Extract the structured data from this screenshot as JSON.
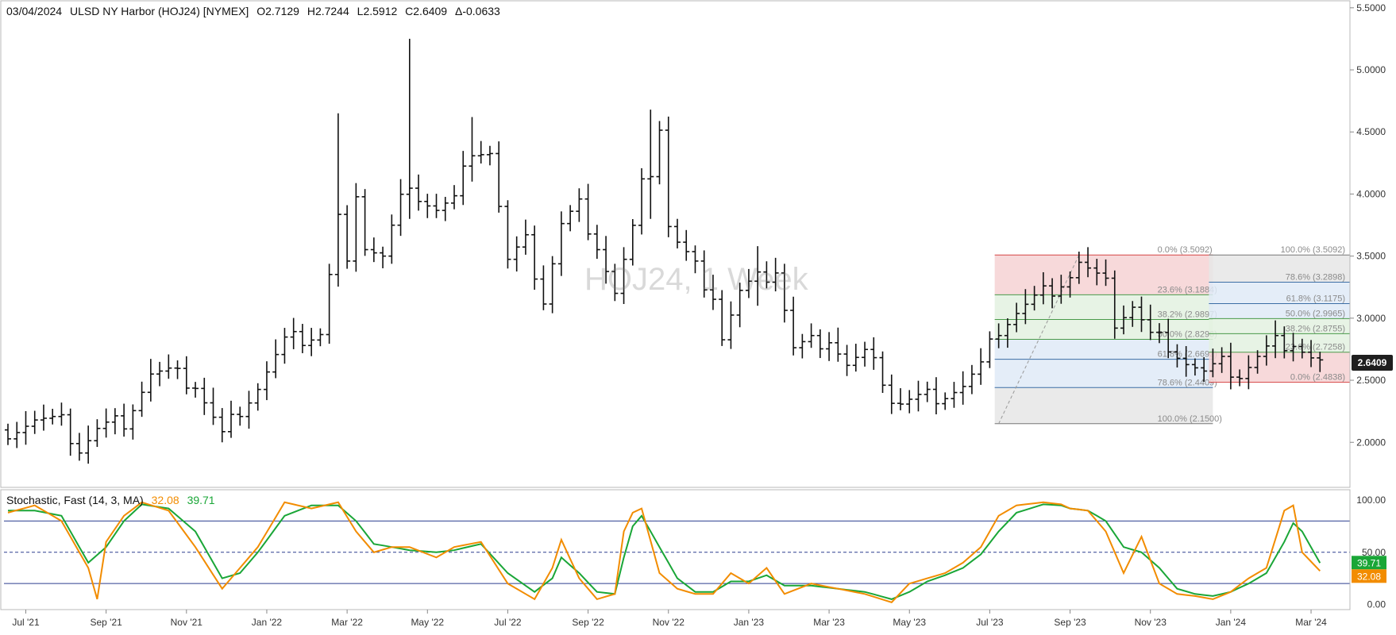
{
  "header": {
    "date": "03/04/2024",
    "symbol_desc": "ULSD NY Harbor (HOJ24) [NYMEX]",
    "open": "O2.7129",
    "high": "H2.7244",
    "low": "L2.5912",
    "close": "C2.6409",
    "change": "Δ-0.0633"
  },
  "watermark": "HOJ24, 1 Week",
  "last_price_label": "2.6409",
  "stochastic": {
    "title": "Stochastic, Fast  (14, 3, MA)",
    "k_value": "32.08",
    "d_value": "39.71",
    "k_label": "32.08",
    "d_label": "39.71"
  },
  "colors": {
    "bar": "#111111",
    "k_line": "#f28c00",
    "d_line": "#1aa637",
    "last_price_bg": "#1f1f1f",
    "fib_red": "#f6d2d4",
    "fib_green": "#e3f1e1",
    "fib_blue": "#dfeaf7",
    "fib_gray": "#e6e6e6",
    "guide_blue": "#2c3e8f"
  },
  "chart_data": {
    "type": "ohlc",
    "price_axis": {
      "ticks": [
        "5.5000",
        "5.0000",
        "4.5000",
        "4.0000",
        "3.5000",
        "3.0000",
        "2.5000",
        "2.0000"
      ],
      "range": [
        1.65,
        5.55
      ]
    },
    "stoch_axis": {
      "ticks": [
        "100.00",
        "50.00",
        "0.00"
      ],
      "range": [
        -5,
        110
      ],
      "lines": [
        80,
        50,
        20
      ]
    },
    "x_axis": {
      "labels": [
        "Jul '21",
        "Sep '21",
        "Nov '21",
        "Jan '22",
        "Mar '22",
        "May '22",
        "Jul '22",
        "Sep '22",
        "Nov '22",
        "Jan '23",
        "Mar '23",
        "May '23",
        "Jul '23",
        "Sep '23",
        "Nov '23",
        "Jan '24",
        "Mar '24"
      ],
      "label_weeks": [
        2,
        11,
        20,
        29,
        38,
        47,
        56,
        65,
        74,
        83,
        92,
        101,
        110,
        119,
        128,
        137,
        146
      ]
    },
    "weeks": 148,
    "keypoints": [
      [
        0,
        2.1
      ],
      [
        3,
        2.18
      ],
      [
        6,
        2.15
      ],
      [
        8,
        1.95
      ],
      [
        10,
        2.1
      ],
      [
        13,
        2.18
      ],
      [
        16,
        2.55
      ],
      [
        18,
        2.55
      ],
      [
        21,
        2.47
      ],
      [
        24,
        2.05
      ],
      [
        26,
        2.28
      ],
      [
        28,
        2.45
      ],
      [
        31,
        2.8
      ],
      [
        35,
        2.88
      ],
      [
        37,
        3.8
      ],
      [
        38,
        3.4
      ],
      [
        39,
        4.05
      ],
      [
        40,
        3.6
      ],
      [
        42,
        3.5
      ],
      [
        44,
        3.95
      ],
      [
        46,
        4.0
      ],
      [
        48,
        3.88
      ],
      [
        50,
        3.95
      ],
      [
        52,
        4.38
      ],
      [
        54,
        4.35
      ],
      [
        56,
        3.45
      ],
      [
        58,
        3.6
      ],
      [
        60,
        3.15
      ],
      [
        62,
        3.75
      ],
      [
        64,
        3.9
      ],
      [
        66,
        3.6
      ],
      [
        67,
        3.4
      ],
      [
        68,
        3.2
      ],
      [
        70,
        3.7
      ],
      [
        71,
        4.05
      ],
      [
        72,
        4.2
      ],
      [
        73,
        4.55
      ],
      [
        74,
        3.75
      ],
      [
        75,
        3.6
      ],
      [
        77,
        3.4
      ],
      [
        79,
        3.2
      ],
      [
        80,
        2.85
      ],
      [
        82,
        3.2
      ],
      [
        84,
        3.3
      ],
      [
        86,
        3.4
      ],
      [
        88,
        2.75
      ],
      [
        90,
        2.8
      ],
      [
        92,
        2.85
      ],
      [
        94,
        2.62
      ],
      [
        96,
        2.7
      ],
      [
        98,
        2.52
      ],
      [
        99,
        2.35
      ],
      [
        100,
        2.32
      ],
      [
        102,
        2.35
      ],
      [
        105,
        2.4
      ],
      [
        107,
        2.45
      ],
      [
        109,
        2.6
      ],
      [
        111,
        2.92
      ],
      [
        113,
        3.05
      ],
      [
        115,
        3.15
      ],
      [
        117,
        3.25
      ],
      [
        119,
        3.35
      ],
      [
        120,
        3.45
      ],
      [
        121,
        3.38
      ],
      [
        123,
        3.25
      ],
      [
        124,
        2.98
      ],
      [
        126,
        3.1
      ],
      [
        128,
        2.85
      ],
      [
        130,
        2.8
      ],
      [
        132,
        2.65
      ],
      [
        134,
        2.55
      ],
      [
        136,
        2.62
      ],
      [
        138,
        2.55
      ],
      [
        140,
        2.68
      ],
      [
        142,
        2.8
      ],
      [
        144,
        2.82
      ],
      [
        146,
        2.68
      ],
      [
        147,
        2.64
      ]
    ],
    "spikes": {
      "37": [
        3.4,
        4.65
      ],
      "45": [
        3.8,
        5.25
      ],
      "52": [
        4.1,
        4.62
      ],
      "72": [
        3.8,
        4.68
      ],
      "84": [
        3.1,
        3.58
      ]
    },
    "stochastic_k_keypoints": [
      [
        0,
        88
      ],
      [
        3,
        95
      ],
      [
        6,
        80
      ],
      [
        9,
        35
      ],
      [
        10,
        5
      ],
      [
        11,
        60
      ],
      [
        13,
        85
      ],
      [
        15,
        98
      ],
      [
        18,
        90
      ],
      [
        21,
        55
      ],
      [
        24,
        15
      ],
      [
        26,
        35
      ],
      [
        28,
        55
      ],
      [
        31,
        98
      ],
      [
        34,
        92
      ],
      [
        37,
        98
      ],
      [
        39,
        70
      ],
      [
        41,
        50
      ],
      [
        43,
        55
      ],
      [
        45,
        55
      ],
      [
        48,
        45
      ],
      [
        50,
        55
      ],
      [
        53,
        60
      ],
      [
        56,
        20
      ],
      [
        59,
        5
      ],
      [
        61,
        35
      ],
      [
        62,
        62
      ],
      [
        64,
        25
      ],
      [
        66,
        5
      ],
      [
        68,
        10
      ],
      [
        69,
        70
      ],
      [
        70,
        88
      ],
      [
        71,
        92
      ],
      [
        73,
        30
      ],
      [
        75,
        15
      ],
      [
        77,
        10
      ],
      [
        79,
        10
      ],
      [
        81,
        30
      ],
      [
        83,
        20
      ],
      [
        85,
        35
      ],
      [
        87,
        10
      ],
      [
        90,
        20
      ],
      [
        93,
        15
      ],
      [
        96,
        10
      ],
      [
        99,
        2
      ],
      [
        101,
        20
      ],
      [
        103,
        25
      ],
      [
        105,
        30
      ],
      [
        107,
        40
      ],
      [
        109,
        55
      ],
      [
        111,
        85
      ],
      [
        113,
        95
      ],
      [
        116,
        98
      ],
      [
        118,
        96
      ],
      [
        119,
        92
      ],
      [
        121,
        90
      ],
      [
        123,
        70
      ],
      [
        125,
        30
      ],
      [
        127,
        65
      ],
      [
        129,
        20
      ],
      [
        131,
        10
      ],
      [
        133,
        8
      ],
      [
        135,
        5
      ],
      [
        137,
        12
      ],
      [
        139,
        25
      ],
      [
        141,
        35
      ],
      [
        143,
        90
      ],
      [
        144,
        95
      ],
      [
        145,
        50
      ],
      [
        147,
        32.08
      ]
    ],
    "stochastic_d_keypoints": [
      [
        0,
        90
      ],
      [
        3,
        90
      ],
      [
        6,
        85
      ],
      [
        9,
        40
      ],
      [
        11,
        55
      ],
      [
        13,
        80
      ],
      [
        15,
        96
      ],
      [
        18,
        92
      ],
      [
        21,
        70
      ],
      [
        24,
        25
      ],
      [
        26,
        30
      ],
      [
        28,
        50
      ],
      [
        31,
        85
      ],
      [
        34,
        95
      ],
      [
        37,
        95
      ],
      [
        39,
        80
      ],
      [
        41,
        58
      ],
      [
        43,
        55
      ],
      [
        45,
        52
      ],
      [
        48,
        50
      ],
      [
        50,
        52
      ],
      [
        53,
        58
      ],
      [
        56,
        30
      ],
      [
        59,
        12
      ],
      [
        61,
        25
      ],
      [
        62,
        45
      ],
      [
        64,
        30
      ],
      [
        66,
        12
      ],
      [
        68,
        10
      ],
      [
        69,
        45
      ],
      [
        70,
        75
      ],
      [
        71,
        85
      ],
      [
        73,
        55
      ],
      [
        75,
        25
      ],
      [
        77,
        12
      ],
      [
        79,
        12
      ],
      [
        81,
        22
      ],
      [
        83,
        22
      ],
      [
        85,
        28
      ],
      [
        87,
        18
      ],
      [
        90,
        18
      ],
      [
        93,
        15
      ],
      [
        96,
        12
      ],
      [
        99,
        5
      ],
      [
        101,
        12
      ],
      [
        103,
        22
      ],
      [
        105,
        28
      ],
      [
        107,
        35
      ],
      [
        109,
        48
      ],
      [
        111,
        70
      ],
      [
        113,
        88
      ],
      [
        116,
        96
      ],
      [
        118,
        95
      ],
      [
        119,
        92
      ],
      [
        121,
        90
      ],
      [
        123,
        80
      ],
      [
        125,
        55
      ],
      [
        127,
        50
      ],
      [
        129,
        35
      ],
      [
        131,
        15
      ],
      [
        133,
        10
      ],
      [
        135,
        8
      ],
      [
        137,
        12
      ],
      [
        139,
        20
      ],
      [
        141,
        30
      ],
      [
        143,
        60
      ],
      [
        144,
        78
      ],
      [
        145,
        70
      ],
      [
        147,
        39.71
      ]
    ],
    "fib_left": {
      "week_range": [
        111,
        135
      ],
      "levels": [
        {
          "pct": 0.0,
          "label": "0.0% (3.5092)",
          "price": 3.5092
        },
        {
          "pct": 23.6,
          "label": "23.6% (3.1884)",
          "price": 3.1884
        },
        {
          "pct": 38.2,
          "label": "38.2% (2.9897)",
          "price": 2.9897
        },
        {
          "pct": 50.0,
          "label": "50.0% (2.8296)",
          "price": 2.8296
        },
        {
          "pct": 61.8,
          "label": "61.8% (2.6692)",
          "price": 2.6692
        },
        {
          "pct": 78.6,
          "label": "78.6% (2.4409)",
          "price": 2.4409
        },
        {
          "pct": 100.0,
          "label": "100.0% (2.1500)",
          "price": 2.15
        }
      ]
    },
    "fib_right": {
      "week_range": [
        135,
        169
      ],
      "levels": [
        {
          "pct": 0.0,
          "label": "0.0% (2.4838)",
          "price": 2.4838
        },
        {
          "pct": 23.6,
          "label": "23.6% (2.7258)",
          "price": 2.7258
        },
        {
          "pct": 38.2,
          "label": "38.2% (2.8755)",
          "price": 2.8755
        },
        {
          "pct": 50.0,
          "label": "50.0% (2.9965)",
          "price": 2.9965
        },
        {
          "pct": 61.8,
          "label": "61.8% (3.1175)",
          "price": 3.1175
        },
        {
          "pct": 78.6,
          "label": "78.6% (3.2898)",
          "price": 3.2898
        },
        {
          "pct": 100.0,
          "label": "100.0% (3.5092)",
          "price": 3.5092
        }
      ]
    }
  }
}
